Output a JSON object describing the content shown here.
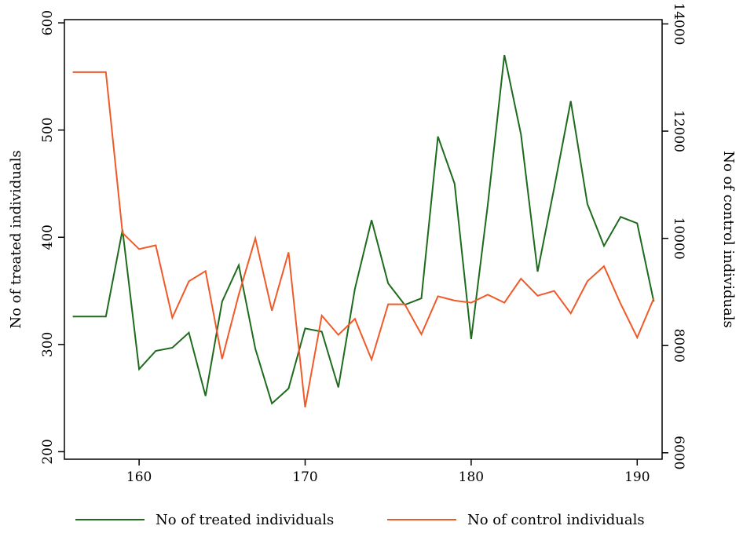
{
  "chart_data": {
    "type": "line",
    "title": "",
    "xlabel": "",
    "ylabel_left": "No of treated individuals",
    "ylabel_right": "No of control individuals",
    "xlim": [
      155.5,
      191.5
    ],
    "xticks": [
      160,
      170,
      180,
      190
    ],
    "ylim_left": [
      193,
      603
    ],
    "yticks_left": [
      200,
      300,
      400,
      500,
      600
    ],
    "ylim_right": [
      5880,
      14080
    ],
    "yticks_right": [
      6000,
      8000,
      10000,
      12000,
      14000
    ],
    "grid": false,
    "legend": "bottom",
    "series": [
      {
        "name": "No of treated individuals",
        "axis": "left",
        "color": "#1e6b1e",
        "x": [
          156,
          157,
          158,
          159,
          160,
          161,
          162,
          163,
          164,
          165,
          166,
          167,
          168,
          169,
          170,
          171,
          172,
          173,
          174,
          175,
          176,
          177,
          178,
          179,
          180,
          181,
          182,
          183,
          184,
          185,
          186,
          187,
          188,
          189,
          190,
          191
        ],
        "y": [
          326,
          326,
          326,
          407,
          277,
          294,
          297,
          311,
          252,
          340,
          374,
          296,
          245,
          259,
          315,
          312,
          260,
          352,
          416,
          357,
          337,
          343,
          494,
          450,
          305,
          430,
          570,
          496,
          368,
          446,
          527,
          431,
          392,
          419,
          413,
          340
        ]
      },
      {
        "name": "No of control individuals",
        "axis": "right",
        "color": "#f05a28",
        "x": [
          156,
          157,
          158,
          159,
          160,
          161,
          162,
          163,
          164,
          165,
          166,
          167,
          168,
          169,
          170,
          171,
          172,
          173,
          174,
          175,
          176,
          177,
          178,
          179,
          180,
          181,
          182,
          183,
          184,
          185,
          186,
          187,
          188,
          189,
          190,
          191
        ],
        "y": [
          13100,
          13100,
          13100,
          10100,
          9800,
          9870,
          8520,
          9200,
          9390,
          7750,
          8950,
          10000,
          8650,
          9740,
          6850,
          8560,
          8200,
          8500,
          7740,
          8770,
          8770,
          8210,
          8920,
          8840,
          8800,
          8950,
          8800,
          9250,
          8930,
          9020,
          8600,
          9200,
          9480,
          8780,
          8150,
          8880
        ]
      }
    ]
  }
}
